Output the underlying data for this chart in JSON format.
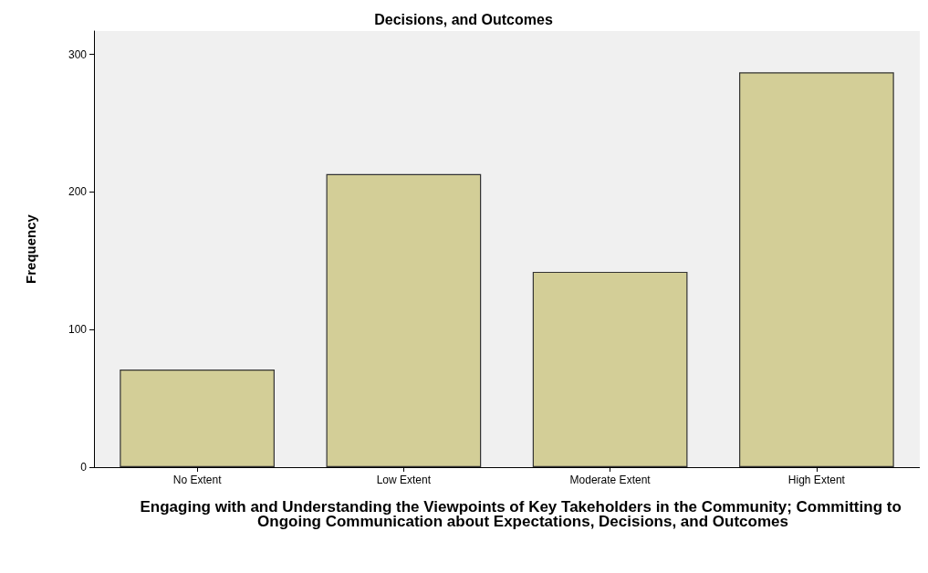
{
  "chart_data": {
    "type": "bar",
    "title": "Decisions, and Outcomes",
    "xlabel": "Engaging with and Understanding the Viewpoints of Key Takeholders in the Community; Committing to Ongoing Communication about Expectations, Decisions, and Outcomes",
    "ylabel": "Frequency",
    "categories": [
      "No Extent",
      "Low Extent",
      "Moderate Extent",
      "High Extent"
    ],
    "values": [
      71,
      213,
      142,
      287
    ],
    "color": "#d3ce97",
    "ylim": [
      0,
      317
    ],
    "yticks": [
      0,
      100,
      200,
      300
    ],
    "grid": false
  }
}
